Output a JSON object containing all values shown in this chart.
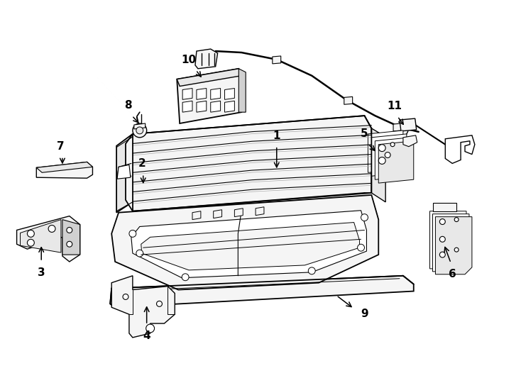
{
  "bg_color": "#ffffff",
  "line_color": "#000000",
  "fig_width": 7.34,
  "fig_height": 5.4,
  "dpi": 100,
  "lw_main": 1.0,
  "lw_thick": 1.3,
  "lw_thin": 0.7,
  "gray_light": "#f5f5f5",
  "gray_mid": "#e8e8e8",
  "gray_dark": "#d0d0d0"
}
